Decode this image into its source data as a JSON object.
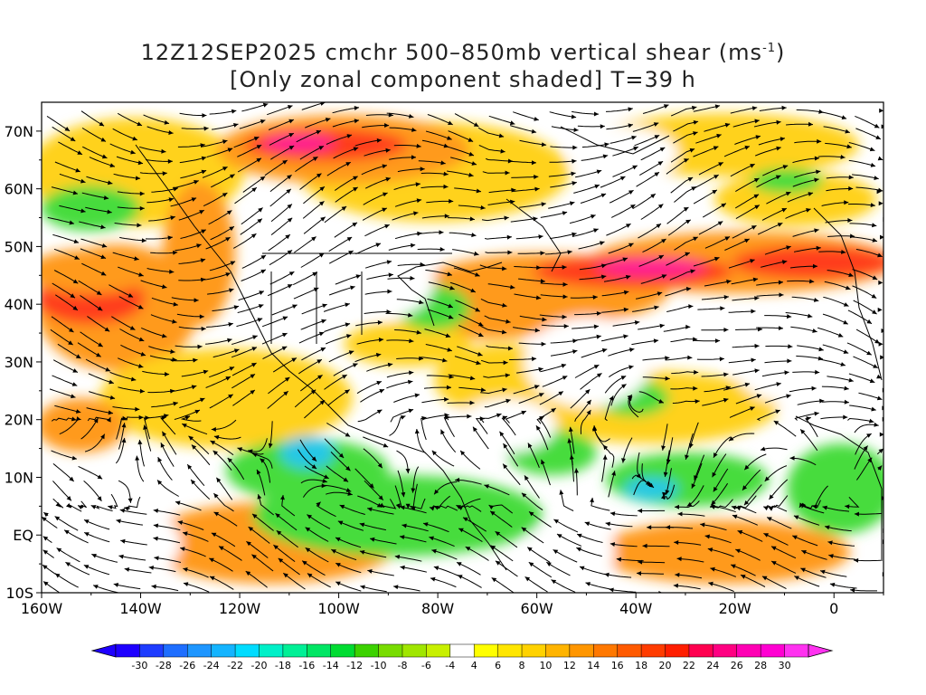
{
  "title": {
    "line1_main": "12Z12SEP2025 cmchr 500–850mb vertical shear (ms",
    "line1_sup": "-1",
    "line1_close": ")",
    "line2": "[Only zonal component shaded] T=39 h"
  },
  "axes": {
    "lat_labels": [
      "70N",
      "60N",
      "50N",
      "40N",
      "30N",
      "20N",
      "10N",
      "EQ",
      "10S"
    ],
    "lon_labels": [
      "160W",
      "140W",
      "120W",
      "100W",
      "80W",
      "60W",
      "40W",
      "20W",
      "0"
    ],
    "lat_range": [
      -10,
      75
    ],
    "lon_range": [
      -160,
      10
    ]
  },
  "colorbar": {
    "labels": [
      "-30",
      "-28",
      "-26",
      "-24",
      "-22",
      "-20",
      "-18",
      "-16",
      "-14",
      "-12",
      "-10",
      "-8",
      "-6",
      "-4",
      "4",
      "6",
      "8",
      "10",
      "12",
      "14",
      "16",
      "18",
      "20",
      "22",
      "24",
      "26",
      "28",
      "30"
    ],
    "colors": [
      "#1e00ff",
      "#1e3cff",
      "#1e6eff",
      "#1e96ff",
      "#14b4ff",
      "#00dcff",
      "#00f0c8",
      "#00f096",
      "#00e664",
      "#00dc32",
      "#3cd200",
      "#78dc00",
      "#a0e600",
      "#c8f000",
      "#ffffff",
      "#ffff00",
      "#ffe600",
      "#ffd200",
      "#ffb400",
      "#ff9600",
      "#ff7800",
      "#ff5a00",
      "#ff3c00",
      "#ff1e00",
      "#ff0050",
      "#ff0082",
      "#ff00b4",
      "#ff00d2",
      "#ff32f0"
    ]
  },
  "colors": {
    "orange": "#ff9a1e",
    "red": "#ff3c1e",
    "magenta": "#ff1e96",
    "yellow": "#ffd21e",
    "green": "#46dc3c",
    "cyan": "#28c8e6",
    "white": "#ffffff"
  }
}
